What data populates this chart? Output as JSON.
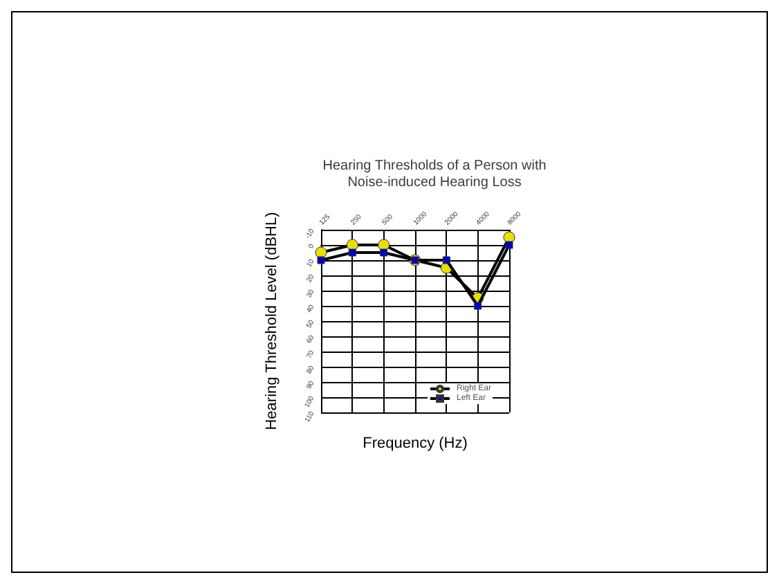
{
  "chart_data": {
    "type": "line",
    "title": "Hearing Thresholds of a Person with\nNoise-induced Hearing Loss",
    "xlabel": "Frequency (Hz)",
    "ylabel": "Hearing Threshold Level (dBHL)",
    "categories": [
      "125",
      "250",
      "500",
      "1000",
      "2000",
      "4000",
      "8000"
    ],
    "series": [
      {
        "name": "Right Ear",
        "color": "#e8e000",
        "marker": "circle",
        "values": [
          5,
          0,
          0,
          10,
          15,
          35,
          -5
        ]
      },
      {
        "name": "Left Ear",
        "color": "#0000cc",
        "marker": "square",
        "values": [
          10,
          5,
          5,
          10,
          10,
          40,
          0
        ]
      }
    ],
    "ylim": [
      110,
      -10
    ],
    "yticks": [
      -10,
      0,
      10,
      20,
      30,
      40,
      50,
      60,
      70,
      80,
      90,
      100,
      110
    ],
    "grid": true,
    "legend": "bottom right"
  }
}
